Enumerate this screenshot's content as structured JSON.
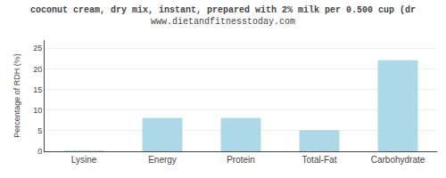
{
  "chart_data": {
    "type": "bar",
    "title": "coconut cream, dry mix, instant, prepared with 2% milk per 0.500 cup (dr",
    "subtitle": "www.dietandfitnesstoday.com",
    "categories": [
      "Lysine",
      "Energy",
      "Protein",
      "Total-Fat",
      "Carbohydrate"
    ],
    "values": [
      0,
      8,
      8,
      5,
      22
    ],
    "color": "#add8e6",
    "ylabel": "Percentage of RDH (%)",
    "ylim": [
      0,
      27
    ],
    "yticks": [
      0,
      5,
      10,
      15,
      20,
      25
    ],
    "grid": true
  }
}
